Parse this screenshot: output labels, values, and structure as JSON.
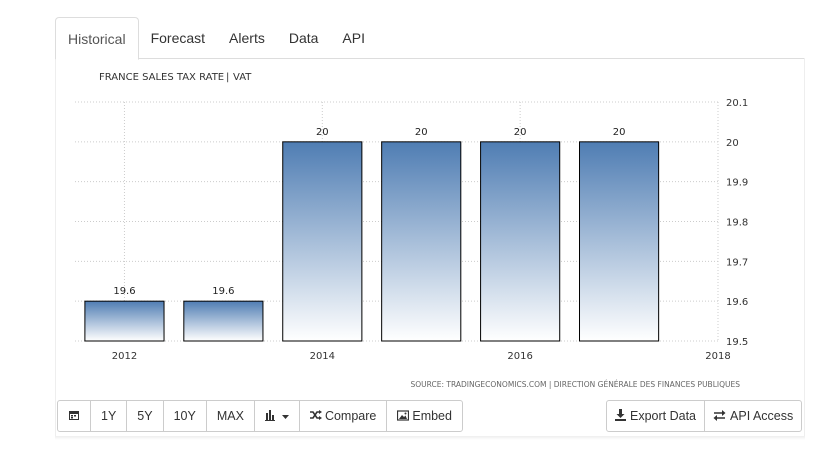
{
  "tabs": [
    {
      "label": "Historical",
      "active": true
    },
    {
      "label": "Forecast",
      "active": false
    },
    {
      "label": "Alerts",
      "active": false
    },
    {
      "label": "Data",
      "active": false
    },
    {
      "label": "API",
      "active": false
    }
  ],
  "chart_data": {
    "type": "bar",
    "title": "FRANCE SALES TAX RATE",
    "subtitle": "VAT",
    "x": [
      2012,
      2013,
      2014,
      2015,
      2016,
      2017
    ],
    "values": [
      19.6,
      19.6,
      20,
      20,
      20,
      20
    ],
    "data_labels": [
      "19.6",
      "19.6",
      "20",
      "20",
      "20",
      "20"
    ],
    "x_tick_labels": [
      "2012",
      "2014",
      "2016",
      "2018"
    ],
    "x_ticks": [
      2012,
      2014,
      2016,
      2018
    ],
    "y_ticks": [
      19.5,
      19.6,
      19.7,
      19.8,
      19.9,
      20,
      20.1
    ],
    "y_tick_labels": [
      "19.5",
      "19.6",
      "19.7",
      "19.8",
      "19.9",
      "20",
      "20.1"
    ],
    "ylim": [
      19.5,
      20.1
    ],
    "xlim": [
      2011.5,
      2018
    ],
    "y_axis_side": "right",
    "grid": true,
    "colors": {
      "bar_top": "#4f7db3",
      "bar_bottom": "#ffffff",
      "bar_stroke": "#000000",
      "grid": "#cccccc"
    },
    "source": "SOURCE: TRADINGECONOMICS.COM | DIRECTION GÉNÉRALE DES FINANCES PUBLIQUES"
  },
  "toolbar": {
    "calendar_icon": "calendar-icon",
    "ranges": [
      "1Y",
      "5Y",
      "10Y",
      "MAX"
    ],
    "chart_type_icon": "bar-chart-icon",
    "compare_label": "Compare",
    "embed_label": "Embed",
    "export_label": "Export Data",
    "api_label": "API Access"
  }
}
